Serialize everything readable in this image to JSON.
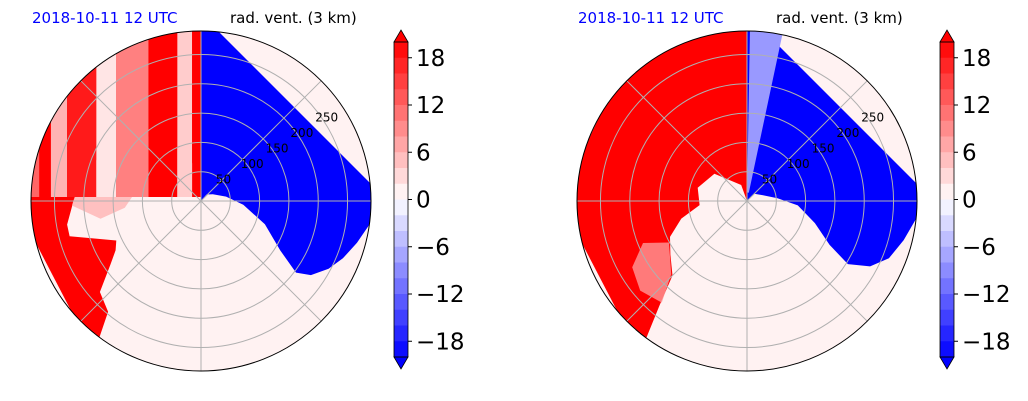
{
  "panels": [
    {
      "date": "2018-10-11 12 UTC",
      "field": "rad. vent. (3 km)",
      "chart_data": {
        "type": "heatmap",
        "projection": "polar",
        "title": "rad. vent. (3 km)",
        "radial_ticks": [
          "50",
          "100",
          "150",
          "200",
          "250"
        ],
        "regions": [
          {
            "name": "north-east sector",
            "value": -20
          },
          {
            "name": "north-west sector, streaky",
            "value": 20
          },
          {
            "name": "west sector",
            "value": 20
          },
          {
            "name": "south sector",
            "value": 1
          },
          {
            "name": "south-east edge",
            "value": -20
          }
        ]
      }
    },
    {
      "date": "2018-10-11 12 UTC",
      "field": "rad. vent. (3 km)",
      "chart_data": {
        "type": "heatmap",
        "projection": "polar",
        "title": "rad. vent. (3 km)",
        "radial_ticks": [
          "50",
          "100",
          "150",
          "200",
          "250"
        ],
        "regions": [
          {
            "name": "north-east sector",
            "value": -20
          },
          {
            "name": "north-west and west sector",
            "value": 20
          },
          {
            "name": "south sector",
            "value": 1
          }
        ]
      }
    }
  ],
  "colorbar": {
    "ticks": [
      "18",
      "12",
      "6",
      "0",
      "−6",
      "−12",
      "−18"
    ],
    "range": [
      -20,
      20
    ],
    "step": 2,
    "colormap": "bwr"
  }
}
